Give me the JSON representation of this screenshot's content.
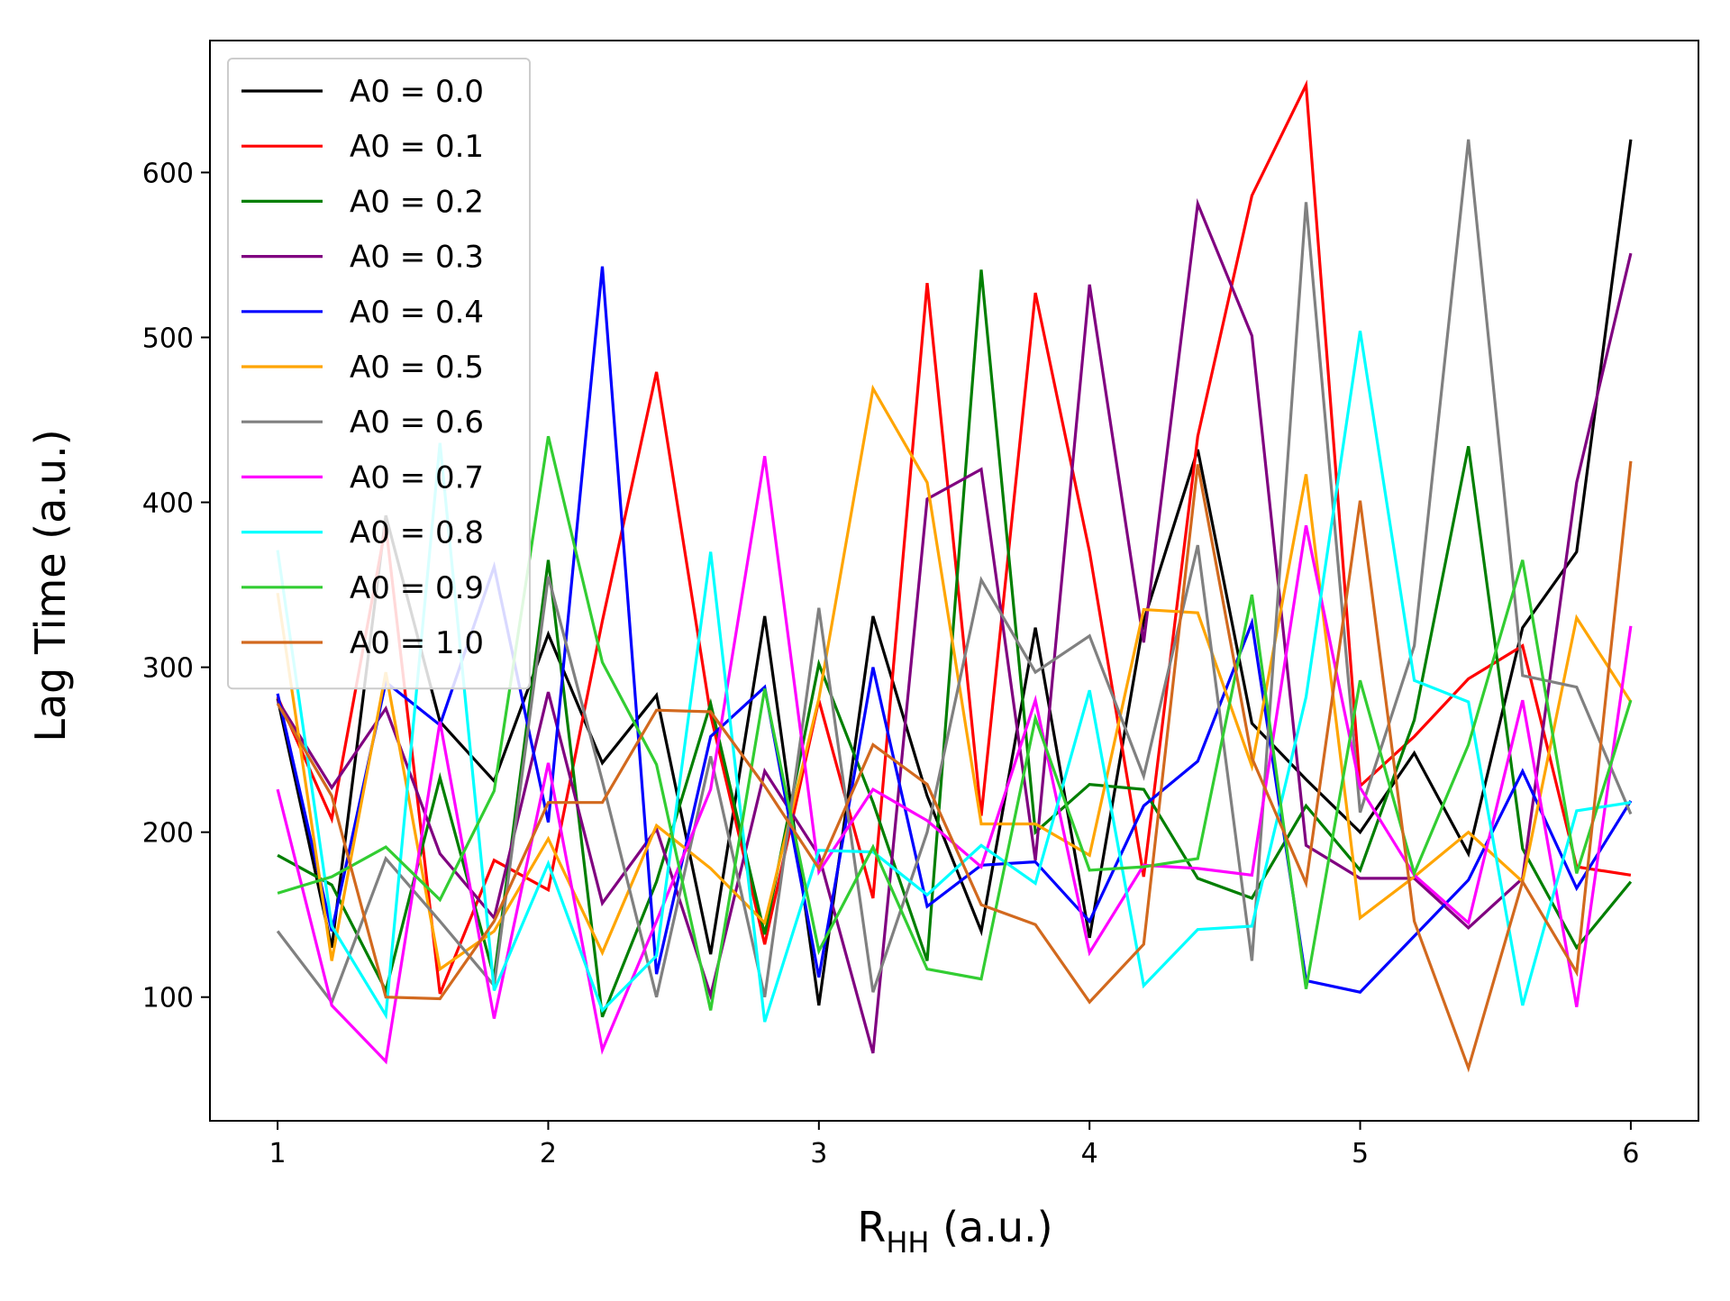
{
  "chart_data": {
    "type": "line",
    "title": "",
    "xlabel_main": "R",
    "xlabel_sub": "HH",
    "xlabel_suffix": " (a.u.)",
    "ylabel": "Lag Time (a.u.)",
    "xlim": [
      0.75,
      6.25
    ],
    "ylim": [
      25,
      680
    ],
    "x_ticks": [
      1,
      2,
      3,
      4,
      5,
      6
    ],
    "y_ticks": [
      100,
      200,
      300,
      400,
      500,
      600
    ],
    "x_tick_labels": [
      "1",
      "2",
      "3",
      "4",
      "5",
      "6"
    ],
    "y_tick_labels": [
      "100",
      "200",
      "300",
      "400",
      "500",
      "600"
    ],
    "grid": false,
    "legend_position": "upper-left",
    "x": [
      1.0,
      1.2,
      1.4,
      1.6,
      1.8,
      2.0,
      2.2,
      2.4,
      2.6,
      2.8,
      3.0,
      3.2,
      3.4,
      3.6,
      3.8,
      4.0,
      4.2,
      4.4,
      4.6,
      4.8,
      5.0,
      5.2,
      5.4,
      5.6,
      5.8,
      6.0
    ],
    "series": [
      {
        "name": "A0 = 0.0",
        "color": "#000000",
        "values": [
          281,
          130,
          392,
          267,
          231,
          320,
          242,
          283,
          126,
          331,
          95,
          331,
          222,
          140,
          324,
          136,
          328,
          432,
          266,
          232,
          200,
          248,
          187,
          324,
          370,
          620
        ]
      },
      {
        "name": "A0 = 0.1",
        "color": "#ff0000",
        "values": [
          282,
          208,
          386,
          102,
          183,
          165,
          328,
          479,
          271,
          132,
          280,
          160,
          533,
          210,
          527,
          370,
          173,
          440,
          586,
          653,
          228,
          258,
          293,
          313,
          179,
          174
        ]
      },
      {
        "name": "A0 = 0.2",
        "color": "#007f00",
        "values": [
          186,
          168,
          104,
          233,
          112,
          365,
          88,
          170,
          278,
          138,
          302,
          218,
          122,
          541,
          200,
          229,
          226,
          172,
          160,
          216,
          177,
          268,
          434,
          190,
          130,
          170
        ]
      },
      {
        "name": "A0 = 0.3",
        "color": "#800080",
        "values": [
          280,
          227,
          275,
          187,
          148,
          285,
          157,
          202,
          101,
          237,
          186,
          66,
          402,
          420,
          183,
          532,
          315,
          581,
          501,
          192,
          172,
          172,
          142,
          172,
          412,
          551
        ]
      },
      {
        "name": "A0 = 0.4",
        "color": "#0000ff",
        "values": [
          284,
          140,
          291,
          265,
          361,
          206,
          543,
          114,
          258,
          288,
          112,
          300,
          155,
          180,
          182,
          146,
          216,
          243,
          327,
          110,
          103,
          137,
          171,
          237,
          166,
          219
        ]
      },
      {
        "name": "A0 = 0.5",
        "color": "#ffa500",
        "values": [
          345,
          122,
          297,
          117,
          140,
          196,
          127,
          204,
          178,
          145,
          281,
          469,
          412,
          205,
          205,
          186,
          335,
          333,
          240,
          417,
          148,
          173,
          200,
          170,
          330,
          279
        ]
      },
      {
        "name": "A0 = 0.6",
        "color": "#808080",
        "values": [
          140,
          97,
          184,
          146,
          107,
          355,
          231,
          100,
          246,
          100,
          336,
          103,
          200,
          353,
          297,
          319,
          234,
          374,
          122,
          582,
          212,
          313,
          620,
          295,
          288,
          211
        ]
      },
      {
        "name": "A0 = 0.7",
        "color": "#ff00ff",
        "values": [
          226,
          95,
          61,
          267,
          87,
          242,
          68,
          146,
          226,
          428,
          176,
          226,
          207,
          179,
          280,
          127,
          180,
          178,
          174,
          386,
          227,
          174,
          145,
          280,
          94,
          325
        ]
      },
      {
        "name": "A0 = 0.8",
        "color": "#00ffff",
        "values": [
          371,
          143,
          89,
          436,
          104,
          181,
          92,
          125,
          370,
          85,
          189,
          188,
          162,
          192,
          169,
          286,
          107,
          141,
          143,
          282,
          504,
          292,
          279,
          95,
          213,
          218
        ]
      },
      {
        "name": "A0 = 0.9",
        "color": "#32cd32",
        "values": [
          163,
          173,
          191,
          159,
          225,
          440,
          303,
          241,
          92,
          287,
          128,
          191,
          117,
          111,
          269,
          177,
          179,
          184,
          344,
          105,
          292,
          175,
          253,
          365,
          175,
          280
        ]
      },
      {
        "name": "A0 = 1.0",
        "color": "#d2691e",
        "values": [
          278,
          222,
          100,
          99,
          146,
          218,
          218,
          274,
          273,
          228,
          178,
          253,
          229,
          156,
          144,
          97,
          132,
          423,
          245,
          169,
          401,
          146,
          57,
          170,
          115,
          425
        ]
      }
    ]
  }
}
